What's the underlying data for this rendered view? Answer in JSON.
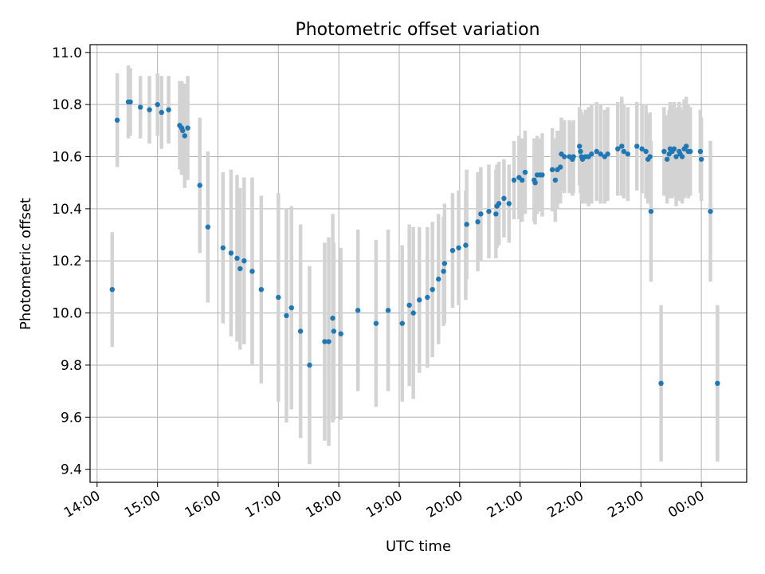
{
  "chart_data": {
    "type": "scatter",
    "title": "Photometric offset variation",
    "xlabel": "UTC time",
    "ylabel": "Photometric offset",
    "x_ticks": [
      "14:00",
      "15:00",
      "16:00",
      "17:00",
      "18:00",
      "19:00",
      "20:00",
      "21:00",
      "22:00",
      "23:00",
      "00:00"
    ],
    "y_ticks": [
      "9.4",
      "9.6",
      "9.8",
      "10.0",
      "10.2",
      "10.4",
      "10.6",
      "10.8",
      "11.0"
    ],
    "xlim": [
      "13:53",
      "00:45"
    ],
    "ylim": [
      9.35,
      11.03
    ],
    "grid": true,
    "colors": {
      "points": "#1f77b4",
      "error_bars": "#d3d3d3",
      "grid": "#b0b0b0"
    },
    "series": [
      {
        "x": [
          "14:15",
          "14:20",
          "14:31",
          "14:33",
          "14:43",
          "14:52",
          "15:00",
          "15:04",
          "15:11",
          "15:22",
          "15:24",
          "15:25",
          "15:27",
          "15:30",
          "15:42",
          "15:50",
          "16:05",
          "16:13",
          "16:19",
          "16:22",
          "16:26",
          "16:34",
          "16:43",
          "17:00",
          "17:08",
          "17:13",
          "17:22",
          "17:31",
          "17:46",
          "17:50",
          "17:54",
          "17:55",
          "18:02",
          "18:19",
          "18:37",
          "18:49",
          "19:03",
          "19:10",
          "19:14",
          "19:20",
          "19:28",
          "19:33",
          "19:39",
          "19:44",
          "19:45",
          "19:53",
          "19:59",
          "20:06",
          "20:07",
          "20:18",
          "20:21",
          "20:29",
          "20:36",
          "20:37",
          "20:39",
          "20:44",
          "20:49",
          "20:54",
          "20:59",
          "21:02",
          "21:05",
          "21:14",
          "21:15",
          "21:17",
          "21:20",
          "21:22",
          "21:32",
          "21:35",
          "21:37",
          "21:40",
          "21:41",
          "21:44",
          "21:49",
          "21:52",
          "21:53",
          "21:59",
          "22:00",
          "22:01",
          "22:02",
          "22:05",
          "22:08",
          "22:11",
          "22:16",
          "22:20",
          "22:24",
          "22:27",
          "22:37",
          "22:41",
          "22:43",
          "22:47",
          "22:56",
          "23:01",
          "23:05",
          "23:07",
          "23:09",
          "23:10",
          "23:20",
          "23:23",
          "23:26",
          "23:28",
          "23:29",
          "23:31",
          "23:33",
          "23:35",
          "23:38",
          "23:39",
          "23:41",
          "23:43",
          "23:45",
          "23:47",
          "23:49",
          "23:59",
          "24:00",
          "24:09",
          "24:16"
        ],
        "y": [
          10.09,
          10.74,
          10.81,
          10.81,
          10.79,
          10.78,
          10.8,
          10.77,
          10.78,
          10.72,
          10.71,
          10.7,
          10.68,
          10.71,
          10.49,
          10.33,
          10.25,
          10.23,
          10.21,
          10.17,
          10.2,
          10.16,
          10.09,
          10.06,
          9.99,
          10.02,
          9.93,
          9.8,
          9.89,
          9.89,
          9.98,
          9.93,
          9.92,
          10.01,
          9.96,
          10.01,
          9.96,
          10.03,
          10.0,
          10.05,
          10.06,
          10.09,
          10.13,
          10.16,
          10.19,
          10.24,
          10.25,
          10.26,
          10.34,
          10.35,
          10.38,
          10.39,
          10.38,
          10.41,
          10.42,
          10.44,
          10.42,
          10.51,
          10.52,
          10.51,
          10.54,
          10.51,
          10.5,
          10.53,
          10.53,
          10.53,
          10.55,
          10.51,
          10.55,
          10.56,
          10.61,
          10.6,
          10.6,
          10.59,
          10.6,
          10.64,
          10.62,
          10.6,
          10.59,
          10.6,
          10.6,
          10.61,
          10.62,
          10.61,
          10.6,
          10.61,
          10.63,
          10.64,
          10.62,
          10.61,
          10.64,
          10.63,
          10.62,
          10.59,
          10.6,
          10.39,
          9.73,
          10.62,
          10.59,
          10.61,
          10.63,
          10.62,
          10.63,
          10.6,
          10.62,
          10.61,
          10.6,
          10.63,
          10.64,
          10.62,
          10.62,
          10.62,
          10.59,
          10.39,
          9.73
        ],
        "err": [
          0.22,
          0.18,
          0.14,
          0.13,
          0.12,
          0.13,
          0.12,
          0.14,
          0.13,
          0.17,
          0.18,
          0.17,
          0.2,
          0.2,
          0.26,
          0.29,
          0.29,
          0.32,
          0.32,
          0.31,
          0.32,
          0.36,
          0.36,
          0.4,
          0.41,
          0.39,
          0.41,
          0.38,
          0.38,
          0.4,
          0.4,
          0.34,
          0.33,
          0.31,
          0.32,
          0.31,
          0.3,
          0.31,
          0.33,
          0.28,
          0.27,
          0.26,
          0.25,
          0.21,
          0.23,
          0.22,
          0.22,
          0.21,
          0.21,
          0.19,
          0.18,
          0.18,
          0.17,
          0.16,
          0.16,
          0.15,
          0.15,
          0.15,
          0.16,
          0.16,
          0.16,
          0.16,
          0.16,
          0.15,
          0.14,
          0.16,
          0.16,
          0.16,
          0.15,
          0.14,
          0.14,
          0.14,
          0.14,
          0.14,
          0.14,
          0.15,
          0.16,
          0.17,
          0.17,
          0.18,
          0.19,
          0.19,
          0.19,
          0.19,
          0.18,
          0.18,
          0.18,
          0.19,
          0.18,
          0.18,
          0.17,
          0.17,
          0.18,
          0.17,
          0.17,
          0.27,
          0.3,
          0.17,
          0.17,
          0.17,
          0.18,
          0.18,
          0.18,
          0.19,
          0.19,
          0.18,
          0.18,
          0.19,
          0.19,
          0.18,
          0.17,
          0.16,
          0.16,
          0.27,
          0.3
        ]
      }
    ]
  }
}
